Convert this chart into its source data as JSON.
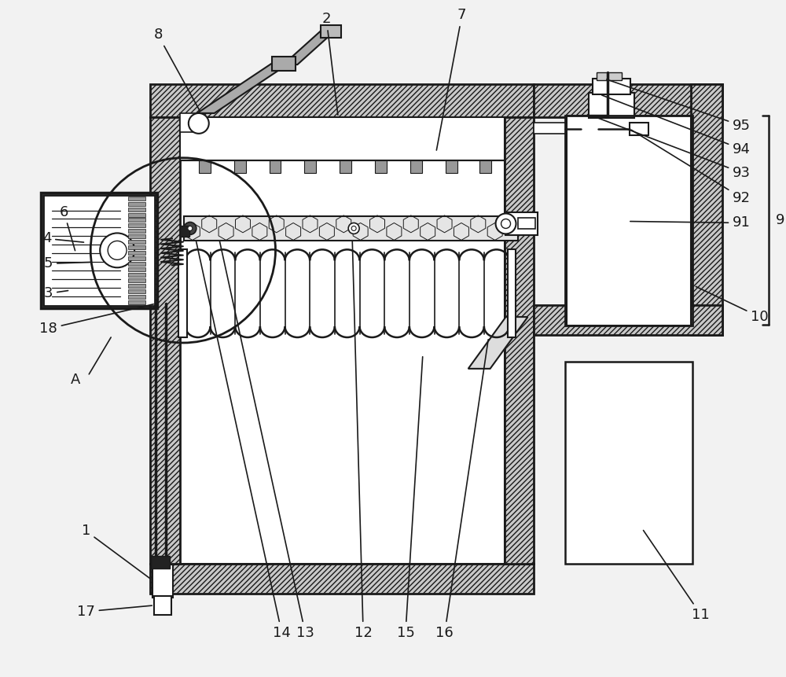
{
  "bg": "#f2f2f2",
  "lc": "#1a1a1a",
  "wall_fc": "#c8c8c8",
  "white": "#ffffff",
  "figsize": [
    10.0,
    8.61
  ],
  "dpi": 100,
  "fs": 13
}
